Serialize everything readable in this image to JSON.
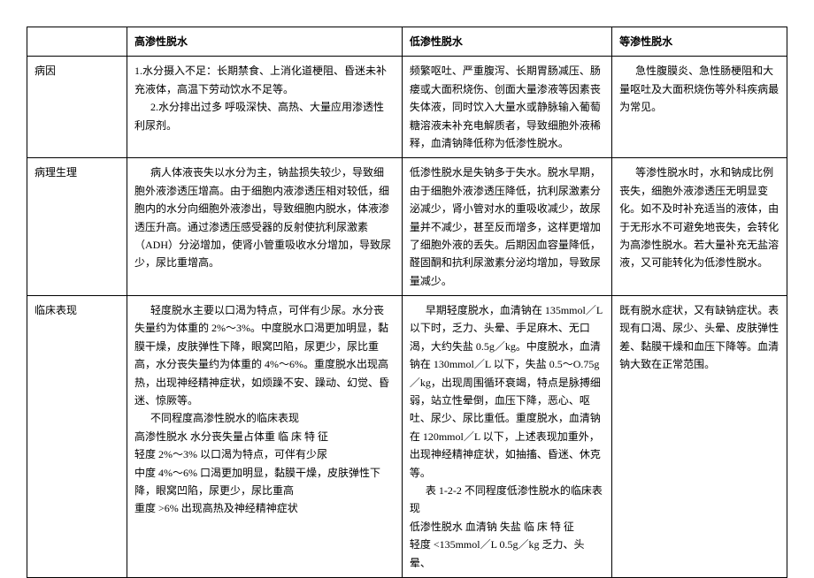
{
  "table": {
    "headers": {
      "blank": "",
      "col1": "高渗性脱水",
      "col2": "低渗性脱水",
      "col3": "等渗性脱水"
    },
    "rows": {
      "r1": {
        "label": "病因",
        "c1_p1": "1.水分摄入不足：长期禁食、上消化道梗阻、昏迷未补充液体，高温下劳动饮水不足等。",
        "c1_p2": "2.水分排出过多  呼吸深快、高热、大量应用渗透性利尿剂。",
        "c2": "频繁呕吐、严重腹泻、长期胃肠减压、肠瘘或大面积烧伤、创面大量渗液等因素丧失体液，同时饮入大量水或静脉输入葡萄糖溶液未补充电解质者，导致细胞外液稀释，血清钠降低称为低渗性脱水。",
        "c3": "急性腹膜炎、急性肠梗阻和大量呕吐及大面积烧伤等外科疾病最为常见。"
      },
      "r2": {
        "label": "病理生理",
        "c1": "病人体液丧失以水分为主，钠盐损失较少，导致细胞外液渗透压增高。由于细胞内液渗透压相对较低，细胞内的水分向细胞外液渗出，导致细胞内脱水，体液渗透压升高。通过渗透压感受器的反射使抗利尿激素（ADH）分泌增加，使肾小管重吸收水分增加，导致尿少，尿比重增高。",
        "c2": "低渗性脱水是失钠多于失水。脱水早期，由于细胞外液渗透压降低，抗利尿激素分泌减少，肾小管对水的重吸收减少，故尿量并不减少，甚至反而增多，这样更增加了细胞外液的丢失。后期因血容量降低，醛固酮和抗利尿激素分泌均增加，导致尿量减少。",
        "c3": "等渗性脱水时，水和钠成比例丧失，细胞外液渗透压无明显变化。如不及时补充适当的液体，由于无形水不可避免地丧失，会转化为高渗性脱水。若大量补充无盐溶液，又可能转化为低渗性脱水。"
      },
      "r3": {
        "label": "临床表现",
        "c1_p1": "轻度脱水主要以口渴为特点，可伴有少尿。水分丧失量约为体重的 2%～3%。中度脱水口渴更加明显，黏膜干燥，皮肤弹性下降，眼窝凹陷，尿更少，尿比重高，水分丧失量约为体重的 4%～6%。重度脱水出现高热，出现神经精神症状，如烦躁不安、躁动、幻觉、昏迷、惊厥等。",
        "c1_p2": "不同程度高渗性脱水的临床表现",
        "c1_p3": "高渗性脱水 水分丧失量占体重 临 床 特 征",
        "c1_p4": "轻度 2%～3% 以口渴为特点，可伴有少尿",
        "c1_p5": "中度 4%～6% 口渴更加明显，黏膜干燥，皮肤弹性下降，眼窝凹陷，尿更少，尿比重高",
        "c1_p6": "重度 >6% 出现高热及神经精神症状",
        "c2_p1": "早期轻度脱水，血清钠在 135mmol／L 以下时，乏力、头晕、手足麻木、无口渴，大约失盐 0.5g／kg。中度脱水，血清钠在 130mmol／L 以下，失盐 0.5～O.75g／kg，出现周围循环衰竭，特点是脉搏细弱，站立性晕倒，血压下降，恶心、呕吐、尿少、尿比重低。重度脱水，血清钠在 120mmol／L 以下，上述表现加重外，出现神经精神症状，如抽搐、昏迷、休克等。",
        "c2_p2": "表 1-2-2 不同程度低渗性脱水的临床表现",
        "c2_p3": "低渗性脱水 血清钠 失盐 临 床 特 征",
        "c2_p4": "轻度 <135mmol／L 0.5g／kg 乏力、头晕、",
        "c3": "既有脱水症状，又有缺钠症状。表现有口渴、尿少、头晕、皮肤弹性差、黏膜干燥和血压下降等。血清钠大致在正常范围。"
      }
    }
  }
}
